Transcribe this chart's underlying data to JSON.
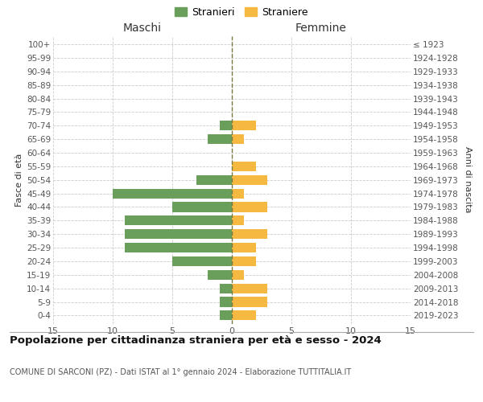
{
  "age_groups": [
    "0-4",
    "5-9",
    "10-14",
    "15-19",
    "20-24",
    "25-29",
    "30-34",
    "35-39",
    "40-44",
    "45-49",
    "50-54",
    "55-59",
    "60-64",
    "65-69",
    "70-74",
    "75-79",
    "80-84",
    "85-89",
    "90-94",
    "95-99",
    "100+"
  ],
  "birth_years": [
    "2019-2023",
    "2014-2018",
    "2009-2013",
    "2004-2008",
    "1999-2003",
    "1994-1998",
    "1989-1993",
    "1984-1988",
    "1979-1983",
    "1974-1978",
    "1969-1973",
    "1964-1968",
    "1959-1963",
    "1954-1958",
    "1949-1953",
    "1944-1948",
    "1939-1943",
    "1934-1938",
    "1929-1933",
    "1924-1928",
    "≤ 1923"
  ],
  "maschi": [
    1,
    1,
    1,
    2,
    5,
    9,
    9,
    9,
    5,
    10,
    3,
    0,
    0,
    2,
    1,
    0,
    0,
    0,
    0,
    0,
    0
  ],
  "femmine": [
    2,
    3,
    3,
    1,
    2,
    2,
    3,
    1,
    3,
    1,
    3,
    2,
    0,
    1,
    2,
    0,
    0,
    0,
    0,
    0,
    0
  ],
  "color_maschi": "#6a9e5b",
  "color_femmine": "#f5b942",
  "title_main": "Popolazione per cittadinanza straniera per età e sesso - 2024",
  "title_sub": "COMUNE DI SARCONI (PZ) - Dati ISTAT al 1° gennaio 2024 - Elaborazione TUTTITALIA.IT",
  "label_maschi": "Stranieri",
  "label_femmine": "Straniere",
  "xlabel_left": "Maschi",
  "xlabel_right": "Femmine",
  "ylabel_left": "Fasce di età",
  "ylabel_right": "Anni di nascita",
  "xlim": 15,
  "background_color": "#ffffff",
  "grid_color": "#cccccc",
  "dashed_line_color": "#7a7a40"
}
